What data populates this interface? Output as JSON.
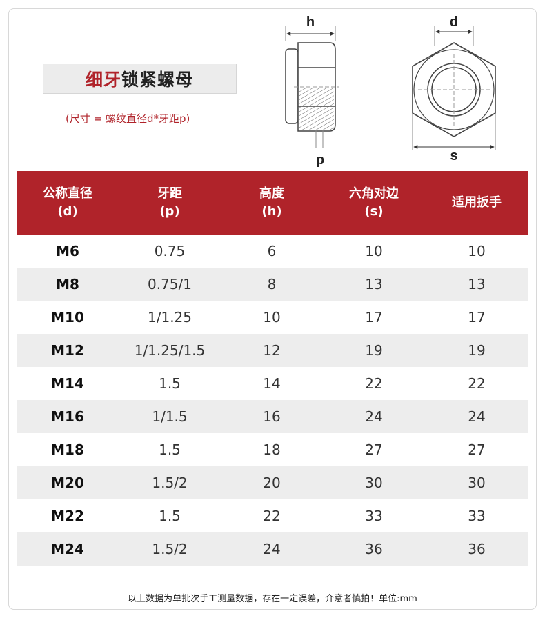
{
  "title": {
    "accent": "细牙",
    "rest": "锁紧螺母"
  },
  "formula": "(尺寸 = 螺纹直径d*牙距p)",
  "diagram": {
    "label_h": "h",
    "label_p": "p",
    "label_d": "d",
    "label_s": "s"
  },
  "table": {
    "headers": [
      {
        "line1": "公称直径",
        "line2": "(d)"
      },
      {
        "line1": "牙距",
        "line2": "(p)"
      },
      {
        "line1": "高度",
        "line2": "(h)"
      },
      {
        "line1": "六角对边",
        "line2": "(s)"
      },
      {
        "line1": "适用扳手",
        "line2": ""
      }
    ],
    "rows": [
      [
        "M6",
        "0.75",
        "6",
        "10",
        "10"
      ],
      [
        "M8",
        "0.75/1",
        "8",
        "13",
        "13"
      ],
      [
        "M10",
        "1/1.25",
        "10",
        "17",
        "17"
      ],
      [
        "M12",
        "1/1.25/1.5",
        "12",
        "19",
        "19"
      ],
      [
        "M14",
        "1.5",
        "14",
        "22",
        "22"
      ],
      [
        "M16",
        "1/1.5",
        "16",
        "24",
        "24"
      ],
      [
        "M18",
        "1.5",
        "18",
        "27",
        "27"
      ],
      [
        "M20",
        "1.5/2",
        "20",
        "30",
        "30"
      ],
      [
        "M22",
        "1.5",
        "22",
        "33",
        "33"
      ],
      [
        "M24",
        "1.5/2",
        "24",
        "36",
        "36"
      ]
    ]
  },
  "footnote": "以上数据为单批次手工测量数据，存在一定误差，介意者慎拍！单位:mm",
  "colors": {
    "accent": "#b0232a",
    "row_alt": "#ededed"
  }
}
